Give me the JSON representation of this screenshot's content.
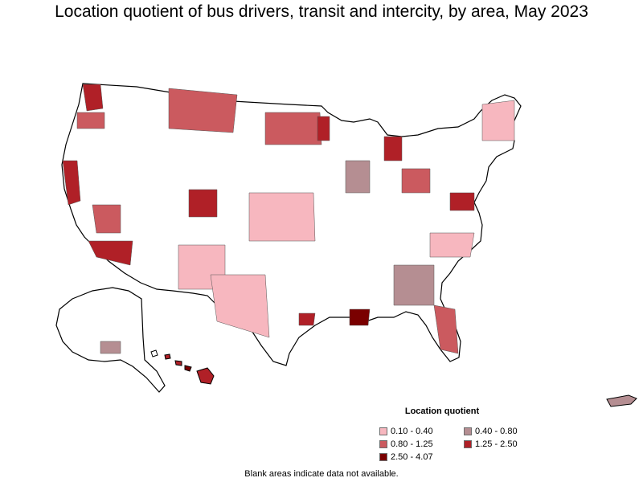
{
  "title": "Location quotient of bus drivers, transit and intercity, by area, May 2023",
  "legend": {
    "title": "Location quotient",
    "items": [
      {
        "label": "0.10 - 0.40",
        "color": "#f7b7bf"
      },
      {
        "label": "0.40 - 0.80",
        "color": "#b58e92"
      },
      {
        "label": "0.80 - 1.25",
        "color": "#cb5a5f"
      },
      {
        "label": "1.25 - 2.50",
        "color": "#b02027"
      },
      {
        "label": "2.50 - 4.07",
        "color": "#7a0000"
      }
    ]
  },
  "footnote": "Blank areas indicate data not available.",
  "colors": {
    "blank": "#ffffff",
    "outline": "#000000",
    "internal": "#9a9a9a"
  }
}
